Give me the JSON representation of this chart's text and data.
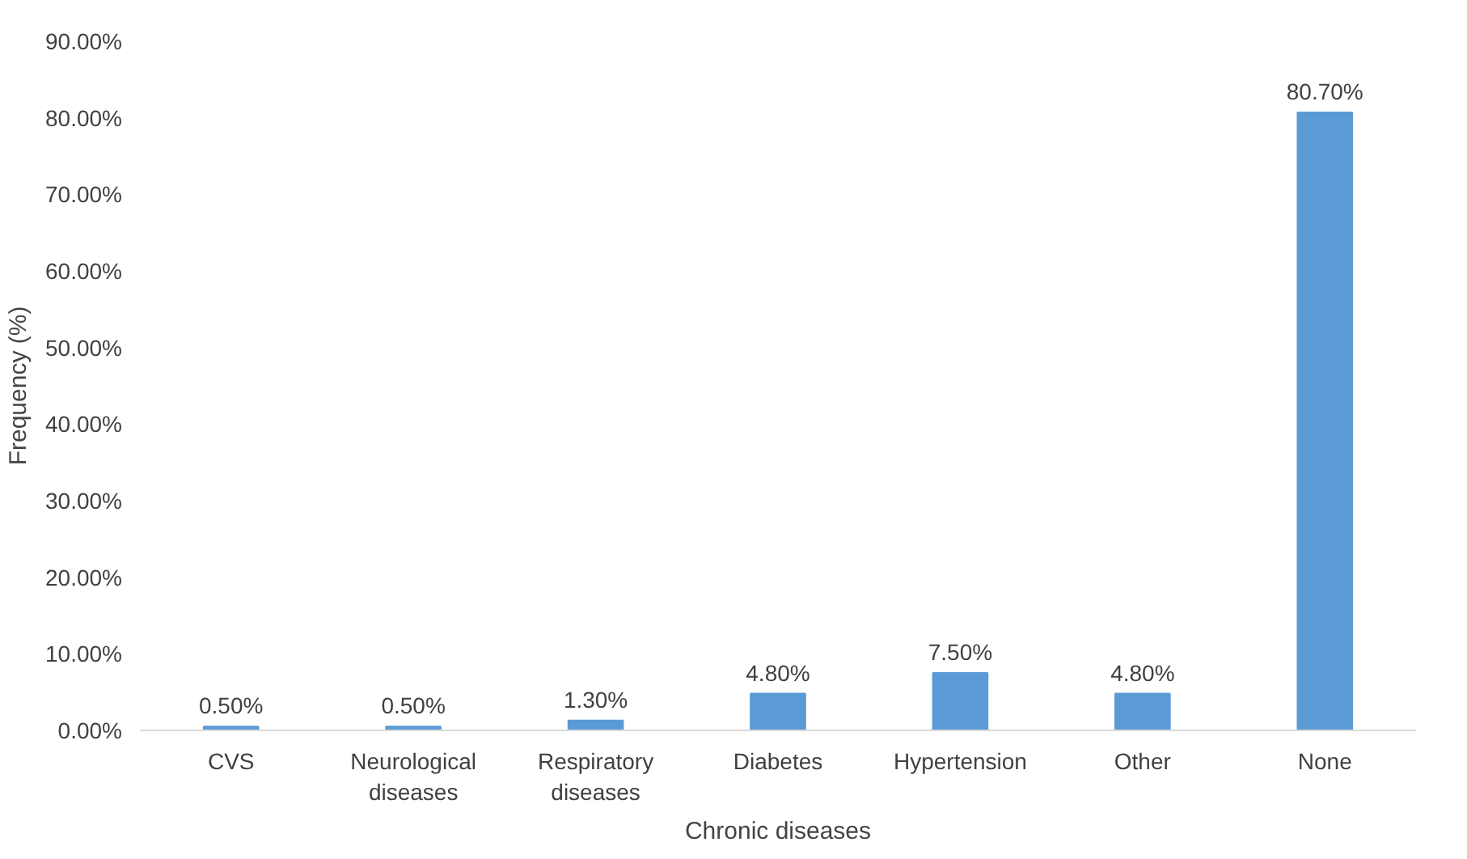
{
  "chart_data": {
    "type": "bar",
    "xlabel": "Chronic diseases",
    "ylabel": "Frequency (%)",
    "categories": [
      "CVS",
      "Neurological diseases",
      "Respiratory diseases",
      "Diabetes",
      "Hypertension",
      "Other",
      "None"
    ],
    "values": [
      0.5,
      0.5,
      1.3,
      4.8,
      7.5,
      4.8,
      80.7
    ],
    "value_labels": [
      "0.50%",
      "0.50%",
      "1.30%",
      "4.80%",
      "7.50%",
      "4.80%",
      "80.70%"
    ],
    "color": "#5b9bd5",
    "ylim": [
      0,
      90
    ],
    "yticks": [
      {
        "value": 0,
        "label": "0.00%"
      },
      {
        "value": 10,
        "label": "10.00%"
      },
      {
        "value": 20,
        "label": "20.00%"
      },
      {
        "value": 30,
        "label": "30.00%"
      },
      {
        "value": 40,
        "label": "40.00%"
      },
      {
        "value": 50,
        "label": "50.00%"
      },
      {
        "value": 60,
        "label": "60.00%"
      },
      {
        "value": 70,
        "label": "70.00%"
      },
      {
        "value": 80,
        "label": "80.00%"
      },
      {
        "value": 90,
        "label": "90.00%"
      }
    ],
    "grid": false
  }
}
